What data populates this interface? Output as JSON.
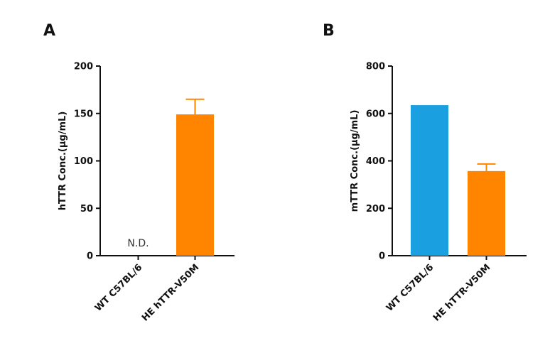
{
  "chart_data": [
    {
      "panel": "A",
      "type": "bar",
      "categories": [
        "WT C57BL/6",
        "HE hTTR-V50M"
      ],
      "values": [
        0,
        149
      ],
      "errors": [
        null,
        16
      ],
      "colors": [
        "#1a9fe0",
        "#ff8400"
      ],
      "annotations": [
        "N.D.",
        ""
      ],
      "xlabel": "",
      "ylabel": "hTTR Conc.(μg/mL)",
      "ylim": [
        0,
        200
      ],
      "yticks": [
        0,
        50,
        100,
        150,
        200
      ]
    },
    {
      "panel": "B",
      "type": "bar",
      "categories": [
        "WT C57BL/6",
        "HE hTTR-V50M"
      ],
      "values": [
        635,
        357
      ],
      "errors": [
        null,
        30
      ],
      "colors": [
        "#1a9fe0",
        "#ff8400"
      ],
      "annotations": [
        "",
        ""
      ],
      "xlabel": "",
      "ylabel": "mTTR Conc.(μg/mL)",
      "ylim": [
        0,
        800
      ],
      "yticks": [
        0,
        200,
        400,
        600,
        800
      ]
    }
  ]
}
